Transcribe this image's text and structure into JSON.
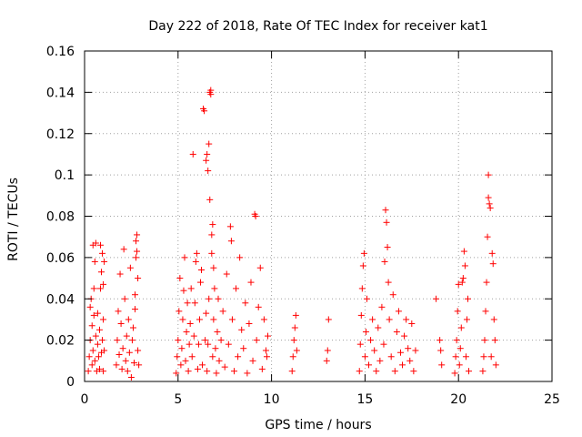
{
  "chart_data": {
    "type": "scatter",
    "title": "Day 222 of 2018, Rate Of TEC Index for receiver kat1",
    "xlabel": "GPS time / hours",
    "ylabel": "ROTI / TECUs",
    "xlim": [
      0,
      25
    ],
    "ylim": [
      0,
      0.16
    ],
    "xticks": [
      0,
      5,
      10,
      15,
      20,
      25
    ],
    "xtick_labels": [
      "0",
      "5",
      "10",
      "15",
      "20",
      "25"
    ],
    "yticks": [
      0,
      0.02,
      0.04,
      0.06,
      0.08,
      0.1,
      0.12,
      0.14,
      0.16
    ],
    "ytick_labels": [
      "0",
      "0.02",
      "0.04",
      "0.06",
      "0.08",
      "0.1",
      "0.12",
      "0.14",
      "0.16"
    ],
    "grid": true,
    "legend": "none",
    "marker": "+",
    "color": "#ff0000",
    "series": [
      {
        "name": "ROTI",
        "points": [
          [
            0.2,
            0.005
          ],
          [
            0.25,
            0.012
          ],
          [
            0.3,
            0.02
          ],
          [
            0.3,
            0.036
          ],
          [
            0.35,
            0.04
          ],
          [
            0.4,
            0.008
          ],
          [
            0.4,
            0.027
          ],
          [
            0.45,
            0.015
          ],
          [
            0.45,
            0.066
          ],
          [
            0.5,
            0.032
          ],
          [
            0.5,
            0.045
          ],
          [
            0.55,
            0.01
          ],
          [
            0.55,
            0.058
          ],
          [
            0.6,
            0.022
          ],
          [
            0.6,
            0.067
          ],
          [
            0.65,
            0.005
          ],
          [
            0.7,
            0.018
          ],
          [
            0.7,
            0.033
          ],
          [
            0.75,
            0.012
          ],
          [
            0.8,
            0.006
          ],
          [
            0.8,
            0.025
          ],
          [
            0.85,
            0.045
          ],
          [
            0.85,
            0.066
          ],
          [
            0.9,
            0.014
          ],
          [
            0.95,
            0.02
          ],
          [
            1.0,
            0.005
          ],
          [
            1.0,
            0.03
          ],
          [
            1.05,
            0.015
          ],
          [
            0.9,
            0.053
          ],
          [
            0.95,
            0.062
          ],
          [
            1.0,
            0.047
          ],
          [
            1.05,
            0.058
          ],
          [
            1.7,
            0.008
          ],
          [
            1.75,
            0.02
          ],
          [
            1.8,
            0.034
          ],
          [
            1.85,
            0.013
          ],
          [
            1.9,
            0.052
          ],
          [
            1.95,
            0.028
          ],
          [
            2.0,
            0.006
          ],
          [
            2.05,
            0.016
          ],
          [
            2.1,
            0.064
          ],
          [
            2.15,
            0.04
          ],
          [
            2.2,
            0.01
          ],
          [
            2.25,
            0.022
          ],
          [
            2.3,
            0.005
          ],
          [
            2.35,
            0.03
          ],
          [
            2.4,
            0.014
          ],
          [
            2.45,
            0.055
          ],
          [
            2.5,
            0.002
          ],
          [
            2.55,
            0.02
          ],
          [
            2.6,
            0.026
          ],
          [
            2.65,
            0.009
          ],
          [
            2.7,
            0.035
          ],
          [
            2.7,
            0.042
          ],
          [
            2.75,
            0.06
          ],
          [
            2.75,
            0.068
          ],
          [
            2.8,
            0.063
          ],
          [
            2.8,
            0.071
          ],
          [
            2.85,
            0.015
          ],
          [
            2.85,
            0.05
          ],
          [
            2.9,
            0.008
          ],
          [
            4.9,
            0.004
          ],
          [
            4.95,
            0.012
          ],
          [
            5.0,
            0.02
          ],
          [
            5.05,
            0.034
          ],
          [
            5.1,
            0.05
          ],
          [
            5.15,
            0.008
          ],
          [
            5.2,
            0.016
          ],
          [
            5.25,
            0.03
          ],
          [
            5.3,
            0.044
          ],
          [
            5.35,
            0.06
          ],
          [
            5.4,
            0.01
          ],
          [
            5.45,
            0.024
          ],
          [
            5.5,
            0.038
          ],
          [
            5.55,
            0.005
          ],
          [
            5.6,
            0.018
          ],
          [
            5.65,
            0.028
          ],
          [
            5.7,
            0.045
          ],
          [
            5.75,
            0.012
          ],
          [
            5.8,
            0.11
          ],
          [
            5.85,
            0.022
          ],
          [
            5.9,
            0.038
          ],
          [
            5.95,
            0.058
          ],
          [
            6.0,
            0.062
          ],
          [
            6.05,
            0.006
          ],
          [
            6.1,
            0.018
          ],
          [
            6.15,
            0.03
          ],
          [
            6.2,
            0.048
          ],
          [
            6.25,
            0.054
          ],
          [
            6.3,
            0.008
          ],
          [
            6.35,
            0.132
          ],
          [
            6.4,
            0.131
          ],
          [
            6.45,
            0.02
          ],
          [
            6.5,
            0.033
          ],
          [
            6.5,
            0.107
          ],
          [
            6.55,
            0.005
          ],
          [
            6.55,
            0.11
          ],
          [
            6.6,
            0.018
          ],
          [
            6.6,
            0.102
          ],
          [
            6.65,
            0.04
          ],
          [
            6.65,
            0.115
          ],
          [
            6.7,
            0.14
          ],
          [
            6.7,
            0.088
          ],
          [
            6.75,
            0.141
          ],
          [
            6.75,
            0.139
          ],
          [
            6.8,
            0.071
          ],
          [
            6.8,
            0.062
          ],
          [
            6.85,
            0.076
          ],
          [
            6.85,
            0.012
          ],
          [
            6.9,
            0.055
          ],
          [
            6.9,
            0.03
          ],
          [
            6.95,
            0.045
          ],
          [
            7.0,
            0.016
          ],
          [
            7.05,
            0.004
          ],
          [
            7.1,
            0.024
          ],
          [
            7.15,
            0.04
          ],
          [
            7.2,
            0.01
          ],
          [
            7.3,
            0.02
          ],
          [
            7.4,
            0.034
          ],
          [
            7.5,
            0.007
          ],
          [
            7.6,
            0.052
          ],
          [
            7.7,
            0.018
          ],
          [
            7.8,
            0.075
          ],
          [
            7.85,
            0.068
          ],
          [
            7.9,
            0.03
          ],
          [
            8.0,
            0.005
          ],
          [
            8.1,
            0.045
          ],
          [
            8.2,
            0.012
          ],
          [
            8.3,
            0.06
          ],
          [
            8.4,
            0.025
          ],
          [
            8.5,
            0.016
          ],
          [
            8.6,
            0.038
          ],
          [
            8.7,
            0.004
          ],
          [
            8.8,
            0.028
          ],
          [
            8.9,
            0.048
          ],
          [
            9.0,
            0.01
          ],
          [
            9.1,
            0.081
          ],
          [
            9.15,
            0.08
          ],
          [
            9.2,
            0.02
          ],
          [
            9.3,
            0.036
          ],
          [
            9.4,
            0.055
          ],
          [
            9.5,
            0.006
          ],
          [
            9.6,
            0.03
          ],
          [
            9.7,
            0.015
          ],
          [
            9.75,
            0.012
          ],
          [
            9.8,
            0.022
          ],
          [
            11.1,
            0.005
          ],
          [
            11.15,
            0.012
          ],
          [
            11.2,
            0.02
          ],
          [
            11.25,
            0.026
          ],
          [
            11.3,
            0.032
          ],
          [
            11.35,
            0.015
          ],
          [
            12.95,
            0.01
          ],
          [
            13.0,
            0.015
          ],
          [
            13.05,
            0.03
          ],
          [
            14.7,
            0.005
          ],
          [
            14.75,
            0.018
          ],
          [
            14.8,
            0.032
          ],
          [
            14.85,
            0.045
          ],
          [
            14.9,
            0.056
          ],
          [
            14.95,
            0.062
          ],
          [
            15.0,
            0.012
          ],
          [
            15.05,
            0.024
          ],
          [
            15.1,
            0.04
          ],
          [
            15.2,
            0.008
          ],
          [
            15.3,
            0.02
          ],
          [
            15.4,
            0.03
          ],
          [
            15.5,
            0.015
          ],
          [
            15.6,
            0.005
          ],
          [
            15.7,
            0.026
          ],
          [
            15.8,
            0.01
          ],
          [
            15.9,
            0.036
          ],
          [
            16.0,
            0.018
          ],
          [
            16.05,
            0.058
          ],
          [
            16.1,
            0.083
          ],
          [
            16.15,
            0.077
          ],
          [
            16.2,
            0.065
          ],
          [
            16.25,
            0.048
          ],
          [
            16.3,
            0.03
          ],
          [
            16.4,
            0.012
          ],
          [
            16.5,
            0.042
          ],
          [
            16.6,
            0.005
          ],
          [
            16.7,
            0.024
          ],
          [
            16.8,
            0.034
          ],
          [
            16.9,
            0.014
          ],
          [
            17.0,
            0.008
          ],
          [
            17.1,
            0.022
          ],
          [
            17.2,
            0.03
          ],
          [
            17.3,
            0.016
          ],
          [
            17.4,
            0.01
          ],
          [
            17.5,
            0.028
          ],
          [
            17.6,
            0.005
          ],
          [
            17.7,
            0.015
          ],
          [
            18.8,
            0.04
          ],
          [
            19.0,
            0.02
          ],
          [
            19.05,
            0.015
          ],
          [
            19.1,
            0.008
          ],
          [
            19.8,
            0.004
          ],
          [
            19.85,
            0.012
          ],
          [
            19.9,
            0.02
          ],
          [
            19.95,
            0.034
          ],
          [
            20.0,
            0.047
          ],
          [
            20.05,
            0.008
          ],
          [
            20.1,
            0.016
          ],
          [
            20.15,
            0.026
          ],
          [
            20.2,
            0.048
          ],
          [
            20.25,
            0.05
          ],
          [
            20.3,
            0.063
          ],
          [
            20.35,
            0.056
          ],
          [
            20.4,
            0.012
          ],
          [
            20.45,
            0.03
          ],
          [
            20.5,
            0.04
          ],
          [
            20.55,
            0.005
          ],
          [
            21.3,
            0.005
          ],
          [
            21.35,
            0.012
          ],
          [
            21.4,
            0.02
          ],
          [
            21.45,
            0.034
          ],
          [
            21.5,
            0.048
          ],
          [
            21.55,
            0.07
          ],
          [
            21.6,
            0.089
          ],
          [
            21.6,
            0.1
          ],
          [
            21.65,
            0.086
          ],
          [
            21.7,
            0.084
          ],
          [
            21.75,
            0.012
          ],
          [
            21.8,
            0.062
          ],
          [
            21.85,
            0.057
          ],
          [
            21.9,
            0.03
          ],
          [
            21.95,
            0.02
          ],
          [
            22.0,
            0.008
          ]
        ]
      }
    ]
  }
}
